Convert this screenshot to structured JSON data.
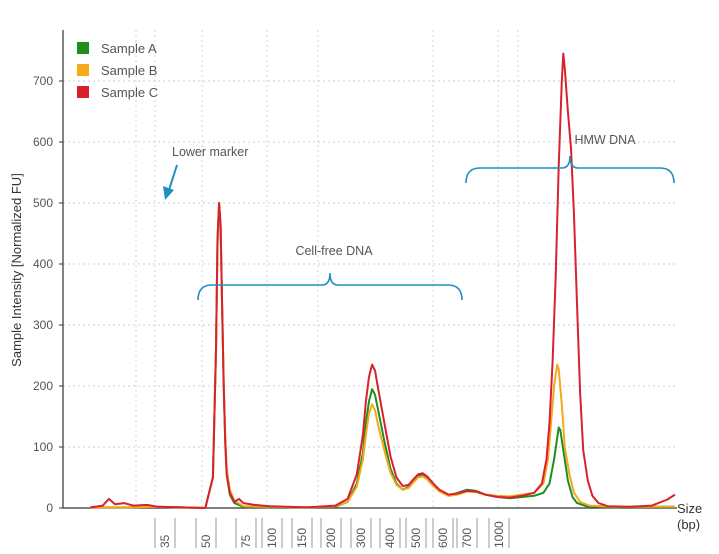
{
  "chart_data": {
    "type": "line",
    "xlabel": "Size\n(bp)",
    "ylabel": "Sample Intensity [Normalized FU]",
    "ylim": [
      0,
      770
    ],
    "grid": true,
    "legend_position": "top-left",
    "y_ticks": [
      0,
      100,
      200,
      300,
      400,
      500,
      600,
      700
    ],
    "x_tick_labels": [
      "35",
      "50",
      "75",
      "100",
      "150",
      "200",
      "300",
      "400",
      "500",
      "600",
      "700",
      "1000"
    ],
    "series": [
      {
        "name": "Sample A",
        "color": "#1e8e1e",
        "points": [
          [
            18,
            1
          ],
          [
            40,
            1
          ],
          [
            60,
            2
          ],
          [
            78,
            1
          ],
          [
            93,
            0
          ],
          [
            98,
            50
          ],
          [
            100,
            260
          ],
          [
            101,
            440
          ],
          [
            102,
            500
          ],
          [
            103,
            460
          ],
          [
            104,
            330
          ],
          [
            105,
            200
          ],
          [
            106,
            110
          ],
          [
            107,
            55
          ],
          [
            109,
            22
          ],
          [
            112,
            8
          ],
          [
            118,
            2
          ],
          [
            135,
            1
          ],
          [
            160,
            1
          ],
          [
            178,
            2
          ],
          [
            186,
            10
          ],
          [
            192,
            40
          ],
          [
            196,
            90
          ],
          [
            198,
            140
          ],
          [
            200,
            175
          ],
          [
            202,
            195
          ],
          [
            204,
            185
          ],
          [
            206,
            160
          ],
          [
            210,
            110
          ],
          [
            214,
            65
          ],
          [
            218,
            40
          ],
          [
            222,
            30
          ],
          [
            226,
            35
          ],
          [
            229,
            45
          ],
          [
            232,
            53
          ],
          [
            235,
            55
          ],
          [
            238,
            50
          ],
          [
            242,
            38
          ],
          [
            246,
            28
          ],
          [
            252,
            20
          ],
          [
            258,
            25
          ],
          [
            264,
            30
          ],
          [
            270,
            28
          ],
          [
            276,
            22
          ],
          [
            284,
            18
          ],
          [
            292,
            16
          ],
          [
            300,
            18
          ],
          [
            308,
            20
          ],
          [
            314,
            25
          ],
          [
            318,
            40
          ],
          [
            321,
            80
          ],
          [
            323,
            115
          ],
          [
            324,
            132
          ],
          [
            325,
            128
          ],
          [
            327,
            95
          ],
          [
            330,
            45
          ],
          [
            333,
            18
          ],
          [
            336,
            8
          ],
          [
            342,
            3
          ],
          [
            360,
            1
          ],
          [
            385,
            2
          ],
          [
            400,
            2
          ]
        ]
      },
      {
        "name": "Sample B",
        "color": "#f2a91a",
        "points": [
          [
            18,
            1
          ],
          [
            40,
            1
          ],
          [
            60,
            2
          ],
          [
            78,
            1
          ],
          [
            93,
            0
          ],
          [
            98,
            50
          ],
          [
            100,
            255
          ],
          [
            101,
            430
          ],
          [
            102,
            490
          ],
          [
            103,
            455
          ],
          [
            104,
            330
          ],
          [
            105,
            210
          ],
          [
            106,
            120
          ],
          [
            107,
            65
          ],
          [
            109,
            30
          ],
          [
            112,
            12
          ],
          [
            118,
            3
          ],
          [
            135,
            2
          ],
          [
            160,
            1
          ],
          [
            178,
            3
          ],
          [
            186,
            10
          ],
          [
            192,
            35
          ],
          [
            196,
            80
          ],
          [
            198,
            120
          ],
          [
            200,
            155
          ],
          [
            202,
            170
          ],
          [
            204,
            160
          ],
          [
            206,
            135
          ],
          [
            210,
            95
          ],
          [
            214,
            58
          ],
          [
            218,
            38
          ],
          [
            222,
            30
          ],
          [
            226,
            33
          ],
          [
            229,
            42
          ],
          [
            232,
            50
          ],
          [
            235,
            52
          ],
          [
            238,
            47
          ],
          [
            242,
            36
          ],
          [
            246,
            27
          ],
          [
            252,
            20
          ],
          [
            258,
            22
          ],
          [
            264,
            27
          ],
          [
            270,
            26
          ],
          [
            276,
            22
          ],
          [
            284,
            20
          ],
          [
            292,
            19
          ],
          [
            300,
            22
          ],
          [
            308,
            25
          ],
          [
            314,
            40
          ],
          [
            317,
            80
          ],
          [
            319,
            140
          ],
          [
            321,
            200
          ],
          [
            323,
            235
          ],
          [
            324,
            228
          ],
          [
            326,
            170
          ],
          [
            328,
            100
          ],
          [
            331,
            55
          ],
          [
            334,
            25
          ],
          [
            338,
            10
          ],
          [
            344,
            4
          ],
          [
            360,
            2
          ],
          [
            385,
            2
          ],
          [
            400,
            2
          ]
        ]
      },
      {
        "name": "Sample C",
        "color": "#d9212e",
        "points": [
          [
            18,
            1
          ],
          [
            26,
            4
          ],
          [
            30,
            15
          ],
          [
            34,
            6
          ],
          [
            40,
            8
          ],
          [
            46,
            4
          ],
          [
            55,
            5
          ],
          [
            62,
            2
          ],
          [
            78,
            1
          ],
          [
            93,
            0
          ],
          [
            98,
            50
          ],
          [
            100,
            260
          ],
          [
            101,
            440
          ],
          [
            102,
            500
          ],
          [
            103,
            465
          ],
          [
            104,
            335
          ],
          [
            105,
            200
          ],
          [
            106,
            110
          ],
          [
            107,
            55
          ],
          [
            109,
            25
          ],
          [
            112,
            10
          ],
          [
            115,
            15
          ],
          [
            118,
            8
          ],
          [
            125,
            5
          ],
          [
            135,
            3
          ],
          [
            160,
            1
          ],
          [
            178,
            4
          ],
          [
            186,
            15
          ],
          [
            192,
            55
          ],
          [
            196,
            120
          ],
          [
            198,
            175
          ],
          [
            200,
            215
          ],
          [
            202,
            235
          ],
          [
            204,
            225
          ],
          [
            206,
            195
          ],
          [
            210,
            140
          ],
          [
            214,
            85
          ],
          [
            218,
            50
          ],
          [
            222,
            36
          ],
          [
            226,
            38
          ],
          [
            229,
            47
          ],
          [
            232,
            55
          ],
          [
            235,
            57
          ],
          [
            238,
            52
          ],
          [
            242,
            40
          ],
          [
            246,
            30
          ],
          [
            252,
            22
          ],
          [
            258,
            24
          ],
          [
            264,
            28
          ],
          [
            270,
            27
          ],
          [
            276,
            22
          ],
          [
            284,
            18
          ],
          [
            292,
            17
          ],
          [
            300,
            20
          ],
          [
            308,
            25
          ],
          [
            313,
            40
          ],
          [
            316,
            80
          ],
          [
            318,
            140
          ],
          [
            320,
            240
          ],
          [
            322,
            380
          ],
          [
            324,
            560
          ],
          [
            326,
            700
          ],
          [
            327,
            745
          ],
          [
            328,
            720
          ],
          [
            330,
            650
          ],
          [
            332,
            590
          ],
          [
            334,
            480
          ],
          [
            336,
            330
          ],
          [
            338,
            190
          ],
          [
            340,
            95
          ],
          [
            343,
            45
          ],
          [
            346,
            20
          ],
          [
            350,
            8
          ],
          [
            356,
            3
          ],
          [
            370,
            2
          ],
          [
            385,
            4
          ],
          [
            395,
            14
          ],
          [
            400,
            22
          ]
        ]
      }
    ],
    "annotations": [
      {
        "label": "Lower marker"
      },
      {
        "label": "Cell-free DNA"
      },
      {
        "label": "HMW DNA"
      }
    ]
  }
}
